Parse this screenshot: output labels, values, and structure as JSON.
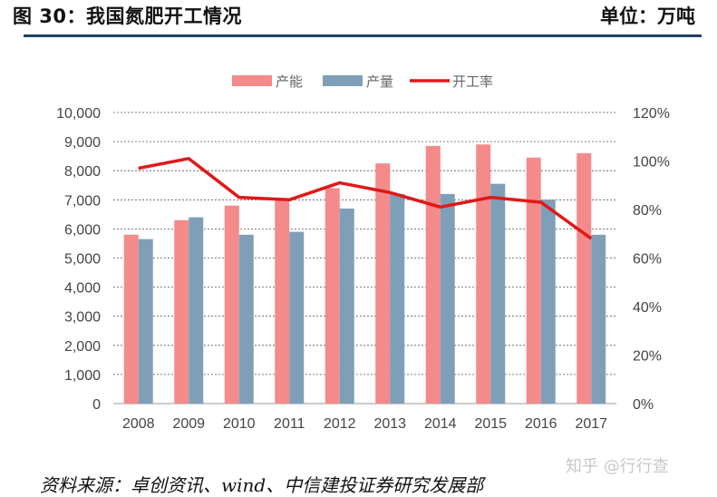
{
  "header": {
    "title": "图 30：我国氮肥开工情况",
    "unit": "单位：万吨"
  },
  "footer": {
    "source": "资料来源：卓创资讯、wind、中信建投证券研究发展部",
    "watermark": "知乎 @行行查"
  },
  "colors": {
    "capacity": "#f48a8a",
    "output": "#7f9fb8",
    "rate": "#e01818",
    "rule": "#1f3f66"
  },
  "chart_data": {
    "type": "bar",
    "categories": [
      "2008",
      "2009",
      "2010",
      "2011",
      "2012",
      "2013",
      "2014",
      "2015",
      "2016",
      "2017"
    ],
    "series": [
      {
        "name": "产能",
        "type": "bar",
        "axis": "left",
        "values": [
          5800,
          6300,
          6800,
          7000,
          7400,
          8250,
          8850,
          8900,
          8450,
          8600
        ]
      },
      {
        "name": "产量",
        "type": "bar",
        "axis": "left",
        "values": [
          5650,
          6400,
          5800,
          5900,
          6700,
          7200,
          7200,
          7550,
          7000,
          5800
        ]
      },
      {
        "name": "开工率",
        "type": "line",
        "axis": "right",
        "values": [
          97,
          101,
          85,
          84,
          91,
          87,
          81,
          85,
          83,
          68
        ]
      }
    ],
    "y_left": {
      "min": 0,
      "max": 10000,
      "ticks": [
        "0",
        "1,000",
        "2,000",
        "3,000",
        "4,000",
        "5,000",
        "6,000",
        "7,000",
        "8,000",
        "9,000",
        "10,000"
      ]
    },
    "y_right": {
      "min": 0,
      "max": 120,
      "ticks": [
        "0%",
        "20%",
        "40%",
        "60%",
        "80%",
        "100%",
        "120%"
      ]
    },
    "grid": "horizontal dashed",
    "legend_position": "top-center"
  }
}
